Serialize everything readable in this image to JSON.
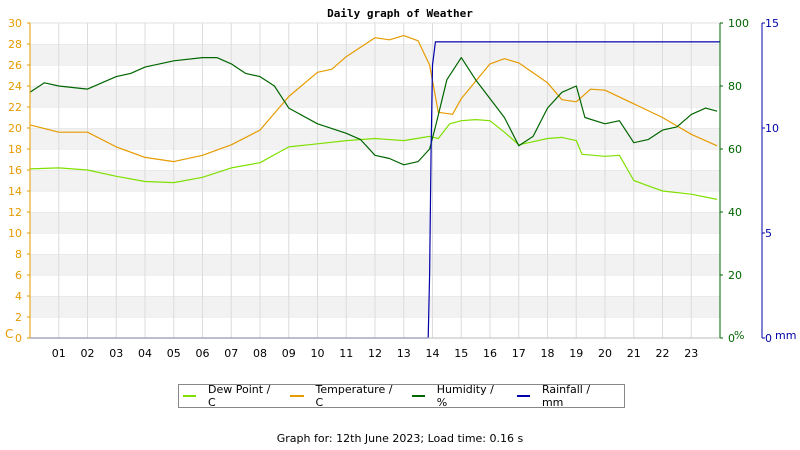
{
  "chart_data": {
    "type": "line",
    "title": "Daily graph of Weather",
    "x_ticks": [
      "01",
      "02",
      "03",
      "04",
      "05",
      "06",
      "07",
      "08",
      "09",
      "10",
      "11",
      "12",
      "13",
      "14",
      "15",
      "16",
      "17",
      "18",
      "19",
      "20",
      "21",
      "22",
      "23"
    ],
    "x_range": [
      0,
      24
    ],
    "axes": {
      "left": {
        "label": "C",
        "range": [
          0,
          30
        ],
        "ticks": [
          0,
          2,
          4,
          6,
          8,
          10,
          12,
          14,
          16,
          18,
          20,
          22,
          24,
          26,
          28,
          30
        ],
        "color": "#e69b00"
      },
      "right1": {
        "label": "%",
        "range": [
          0,
          100
        ],
        "ticks": [
          0,
          20,
          40,
          60,
          80,
          100
        ],
        "color": "#006600"
      },
      "right2": {
        "label": "mm",
        "range": [
          0,
          15
        ],
        "ticks": [
          0,
          5,
          10,
          15
        ],
        "color": "#0000aa"
      }
    },
    "grid": true,
    "legend_placement": "bottom",
    "series": [
      {
        "name": "Dew Point / C",
        "axis": "left",
        "color": "#7fe000",
        "points": [
          [
            0,
            16.1
          ],
          [
            1,
            16.2
          ],
          [
            2,
            16.0
          ],
          [
            3,
            15.4
          ],
          [
            4,
            14.9
          ],
          [
            5,
            14.8
          ],
          [
            6,
            15.3
          ],
          [
            7,
            16.2
          ],
          [
            8,
            16.7
          ],
          [
            9,
            18.2
          ],
          [
            10,
            18.5
          ],
          [
            11,
            18.8
          ],
          [
            12,
            19.0
          ],
          [
            13,
            18.8
          ],
          [
            13.9,
            19.2
          ],
          [
            14.2,
            19.0
          ],
          [
            14.6,
            20.4
          ],
          [
            15,
            20.7
          ],
          [
            15.5,
            20.8
          ],
          [
            16,
            20.7
          ],
          [
            16.5,
            19.6
          ],
          [
            17,
            18.4
          ],
          [
            17.5,
            18.7
          ],
          [
            18,
            19.0
          ],
          [
            18.5,
            19.1
          ],
          [
            19,
            18.8
          ],
          [
            19.2,
            17.5
          ],
          [
            20,
            17.3
          ],
          [
            20.5,
            17.4
          ],
          [
            21,
            15.0
          ],
          [
            21.5,
            14.5
          ],
          [
            22,
            14.0
          ],
          [
            23,
            13.7
          ],
          [
            23.9,
            13.2
          ]
        ]
      },
      {
        "name": "Temperature / C",
        "axis": "left",
        "color": "#e69b00",
        "points": [
          [
            0,
            20.3
          ],
          [
            1,
            19.6
          ],
          [
            2,
            19.6
          ],
          [
            3,
            18.2
          ],
          [
            4,
            17.2
          ],
          [
            5,
            16.8
          ],
          [
            6,
            17.4
          ],
          [
            7,
            18.4
          ],
          [
            8,
            19.8
          ],
          [
            9,
            23.0
          ],
          [
            10,
            25.3
          ],
          [
            10.5,
            25.6
          ],
          [
            11,
            26.8
          ],
          [
            12,
            28.6
          ],
          [
            12.5,
            28.4
          ],
          [
            13,
            28.8
          ],
          [
            13.5,
            28.3
          ],
          [
            13.9,
            26.0
          ],
          [
            14.2,
            21.5
          ],
          [
            14.7,
            21.3
          ],
          [
            15,
            22.8
          ],
          [
            16,
            26.1
          ],
          [
            16.5,
            26.6
          ],
          [
            17,
            26.2
          ],
          [
            18,
            24.3
          ],
          [
            18.5,
            22.7
          ],
          [
            19,
            22.5
          ],
          [
            19.5,
            23.7
          ],
          [
            20,
            23.6
          ],
          [
            21,
            22.3
          ],
          [
            22,
            21.0
          ],
          [
            23,
            19.4
          ],
          [
            23.9,
            18.3
          ]
        ]
      },
      {
        "name": "Humidity / %",
        "axis": "right1",
        "color": "#006600",
        "points": [
          [
            0,
            78
          ],
          [
            0.5,
            81
          ],
          [
            1,
            80
          ],
          [
            2,
            79
          ],
          [
            2.5,
            81
          ],
          [
            3,
            83
          ],
          [
            3.5,
            84
          ],
          [
            4,
            86
          ],
          [
            5,
            88
          ],
          [
            6,
            89
          ],
          [
            6.5,
            89
          ],
          [
            7,
            87
          ],
          [
            7.5,
            84
          ],
          [
            8,
            83
          ],
          [
            8.5,
            80
          ],
          [
            9,
            73
          ],
          [
            10,
            68
          ],
          [
            11,
            65
          ],
          [
            11.5,
            63
          ],
          [
            12,
            58
          ],
          [
            12.5,
            57
          ],
          [
            13,
            55
          ],
          [
            13.5,
            56
          ],
          [
            13.9,
            60
          ],
          [
            14.1,
            67
          ],
          [
            14.5,
            82
          ],
          [
            15,
            89
          ],
          [
            15.5,
            82
          ],
          [
            16,
            76
          ],
          [
            16.5,
            70
          ],
          [
            17,
            61
          ],
          [
            17.5,
            64
          ],
          [
            18,
            73
          ],
          [
            18.5,
            78
          ],
          [
            19,
            80
          ],
          [
            19.3,
            70
          ],
          [
            20,
            68
          ],
          [
            20.5,
            69
          ],
          [
            21,
            62
          ],
          [
            21.5,
            63
          ],
          [
            22,
            66
          ],
          [
            22.5,
            67
          ],
          [
            23,
            71
          ],
          [
            23.5,
            73
          ],
          [
            23.9,
            72
          ]
        ]
      },
      {
        "name": "Rainfall / mm",
        "axis": "right2",
        "color": "#0000aa",
        "points": [
          [
            0,
            0
          ],
          [
            13.85,
            0
          ],
          [
            13.9,
            3
          ],
          [
            13.95,
            9
          ],
          [
            14.0,
            13
          ],
          [
            14.1,
            14.1
          ],
          [
            14.15,
            14.1
          ],
          [
            24,
            14.1
          ]
        ]
      }
    ]
  },
  "footer": {
    "text": "Graph for: 12th June 2023; Load time: 0.16 s"
  }
}
